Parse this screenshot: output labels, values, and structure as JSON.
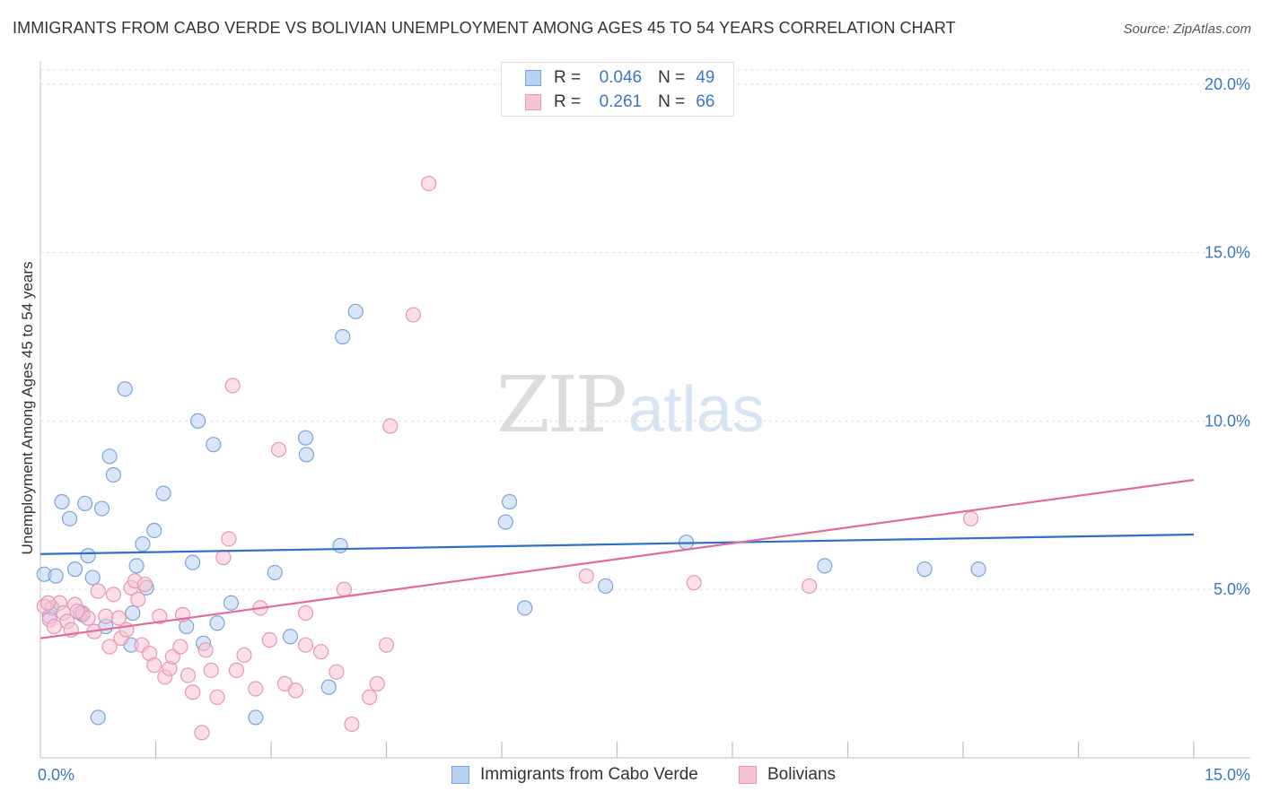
{
  "title": "IMMIGRANTS FROM CABO VERDE VS BOLIVIAN UNEMPLOYMENT AMONG AGES 45 TO 54 YEARS CORRELATION CHART",
  "source": "Source: ZipAtlas.com",
  "watermark": {
    "part1": "ZIP",
    "part2": "atlas"
  },
  "legend": {
    "series1": {
      "r_label": "R =",
      "r_value": "0.046",
      "n_label": "N =",
      "n_value": "49"
    },
    "series2": {
      "r_label": "R =",
      "r_value": "0.261",
      "n_label": "N =",
      "n_value": "66"
    }
  },
  "colors": {
    "blue_fill": "#b9d1f1",
    "blue_stroke": "#7ba3db",
    "blue_line": "#2f6fca",
    "pink_fill": "#f7c3d3",
    "pink_stroke": "#e797b0",
    "pink_line": "#e36b99",
    "axis_text": "#3a76c9",
    "grid": "#dddddd"
  },
  "chart_data": {
    "type": "scatter",
    "title": "IMMIGRANTS FROM CABO VERDE VS BOLIVIAN UNEMPLOYMENT AMONG AGES 45 TO 54 YEARS CORRELATION CHART",
    "xlabel": "",
    "ylabel": "Unemployment Among Ages 45 to 54 years",
    "xlim": [
      0,
      15
    ],
    "ylim": [
      0,
      20.5
    ],
    "x_tick_labels": [
      {
        "value": 0,
        "label": "0.0%"
      },
      {
        "value": 15,
        "label": "15.0%"
      }
    ],
    "x_minor_ticks": [
      1.5,
      3.0,
      4.5,
      6.0,
      7.5,
      9.0,
      10.5,
      12.0,
      13.5,
      15.0
    ],
    "y_ticks": [
      {
        "value": 5,
        "label": "5.0%"
      },
      {
        "value": 10,
        "label": "10.0%"
      },
      {
        "value": 15,
        "label": "15.0%"
      },
      {
        "value": 20,
        "label": "20.0%"
      }
    ],
    "series": [
      {
        "name": "Immigrants from Cabo Verde",
        "color": "blue",
        "points": [
          [
            0.05,
            5.45
          ],
          [
            0.12,
            4.2
          ],
          [
            0.2,
            5.4
          ],
          [
            0.28,
            7.6
          ],
          [
            0.38,
            7.1
          ],
          [
            0.45,
            5.6
          ],
          [
            0.52,
            4.3
          ],
          [
            0.58,
            7.55
          ],
          [
            0.62,
            6.0
          ],
          [
            0.68,
            5.35
          ],
          [
            0.75,
            1.2
          ],
          [
            0.8,
            7.4
          ],
          [
            0.85,
            3.9
          ],
          [
            0.9,
            8.95
          ],
          [
            0.95,
            8.4
          ],
          [
            1.1,
            10.95
          ],
          [
            1.18,
            3.35
          ],
          [
            1.2,
            4.3
          ],
          [
            1.25,
            5.7
          ],
          [
            1.33,
            6.35
          ],
          [
            1.38,
            5.05
          ],
          [
            1.48,
            6.75
          ],
          [
            1.6,
            7.85
          ],
          [
            1.9,
            3.9
          ],
          [
            1.98,
            5.8
          ],
          [
            2.05,
            10.0
          ],
          [
            2.12,
            3.4
          ],
          [
            2.25,
            9.3
          ],
          [
            2.3,
            4.0
          ],
          [
            2.48,
            4.6
          ],
          [
            2.8,
            1.2
          ],
          [
            3.05,
            5.5
          ],
          [
            3.25,
            3.6
          ],
          [
            3.45,
            9.5
          ],
          [
            3.46,
            9.0
          ],
          [
            3.75,
            2.1
          ],
          [
            3.9,
            6.3
          ],
          [
            3.93,
            12.5
          ],
          [
            4.1,
            13.25
          ],
          [
            6.05,
            7.0
          ],
          [
            6.1,
            7.6
          ],
          [
            6.3,
            4.45
          ],
          [
            7.35,
            5.1
          ],
          [
            8.4,
            6.4
          ],
          [
            10.2,
            5.7
          ],
          [
            11.5,
            5.6
          ],
          [
            12.2,
            5.6
          ],
          [
            0.15,
            4.45
          ],
          [
            0.55,
            4.25
          ]
        ]
      },
      {
        "name": "Bolivians",
        "color": "pink",
        "points": [
          [
            0.05,
            4.5
          ],
          [
            0.12,
            4.1
          ],
          [
            0.18,
            3.9
          ],
          [
            0.25,
            4.6
          ],
          [
            0.3,
            4.3
          ],
          [
            0.35,
            4.05
          ],
          [
            0.4,
            3.8
          ],
          [
            0.45,
            4.55
          ],
          [
            0.55,
            4.3
          ],
          [
            0.62,
            4.15
          ],
          [
            0.7,
            3.75
          ],
          [
            0.75,
            4.95
          ],
          [
            0.85,
            4.2
          ],
          [
            0.9,
            3.3
          ],
          [
            0.95,
            4.85
          ],
          [
            1.02,
            4.15
          ],
          [
            1.05,
            3.55
          ],
          [
            1.12,
            3.8
          ],
          [
            1.18,
            5.05
          ],
          [
            1.23,
            5.25
          ],
          [
            1.27,
            4.7
          ],
          [
            1.32,
            3.35
          ],
          [
            1.36,
            5.15
          ],
          [
            1.42,
            3.1
          ],
          [
            1.48,
            2.75
          ],
          [
            1.55,
            4.2
          ],
          [
            1.62,
            2.4
          ],
          [
            1.68,
            2.65
          ],
          [
            1.72,
            3.0
          ],
          [
            1.82,
            3.3
          ],
          [
            1.85,
            4.25
          ],
          [
            1.92,
            2.45
          ],
          [
            1.98,
            1.95
          ],
          [
            2.1,
            0.75
          ],
          [
            2.15,
            3.2
          ],
          [
            2.22,
            2.6
          ],
          [
            2.3,
            1.8
          ],
          [
            2.38,
            5.95
          ],
          [
            2.45,
            6.5
          ],
          [
            2.5,
            11.05
          ],
          [
            2.55,
            2.6
          ],
          [
            2.65,
            3.05
          ],
          [
            2.8,
            2.05
          ],
          [
            2.86,
            4.45
          ],
          [
            2.98,
            3.5
          ],
          [
            3.1,
            9.15
          ],
          [
            3.18,
            2.2
          ],
          [
            3.32,
            2.0
          ],
          [
            3.45,
            4.3
          ],
          [
            3.45,
            3.35
          ],
          [
            3.65,
            3.15
          ],
          [
            3.85,
            2.55
          ],
          [
            3.95,
            5.0
          ],
          [
            4.05,
            1.0
          ],
          [
            4.28,
            1.8
          ],
          [
            4.38,
            2.2
          ],
          [
            4.5,
            3.35
          ],
          [
            4.55,
            9.85
          ],
          [
            4.85,
            13.15
          ],
          [
            5.05,
            17.05
          ],
          [
            7.1,
            5.4
          ],
          [
            8.5,
            5.2
          ],
          [
            10.0,
            5.1
          ],
          [
            12.1,
            7.1
          ],
          [
            0.1,
            4.6
          ],
          [
            0.48,
            4.35
          ]
        ]
      }
    ],
    "trend_lines": [
      {
        "series": "Immigrants from Cabo Verde",
        "x": [
          0,
          15
        ],
        "y": [
          6.05,
          6.63
        ]
      },
      {
        "series": "Bolivians",
        "x": [
          0,
          15
        ],
        "y": [
          3.55,
          8.25
        ]
      }
    ],
    "legend_position": "top-center",
    "grid": true
  }
}
